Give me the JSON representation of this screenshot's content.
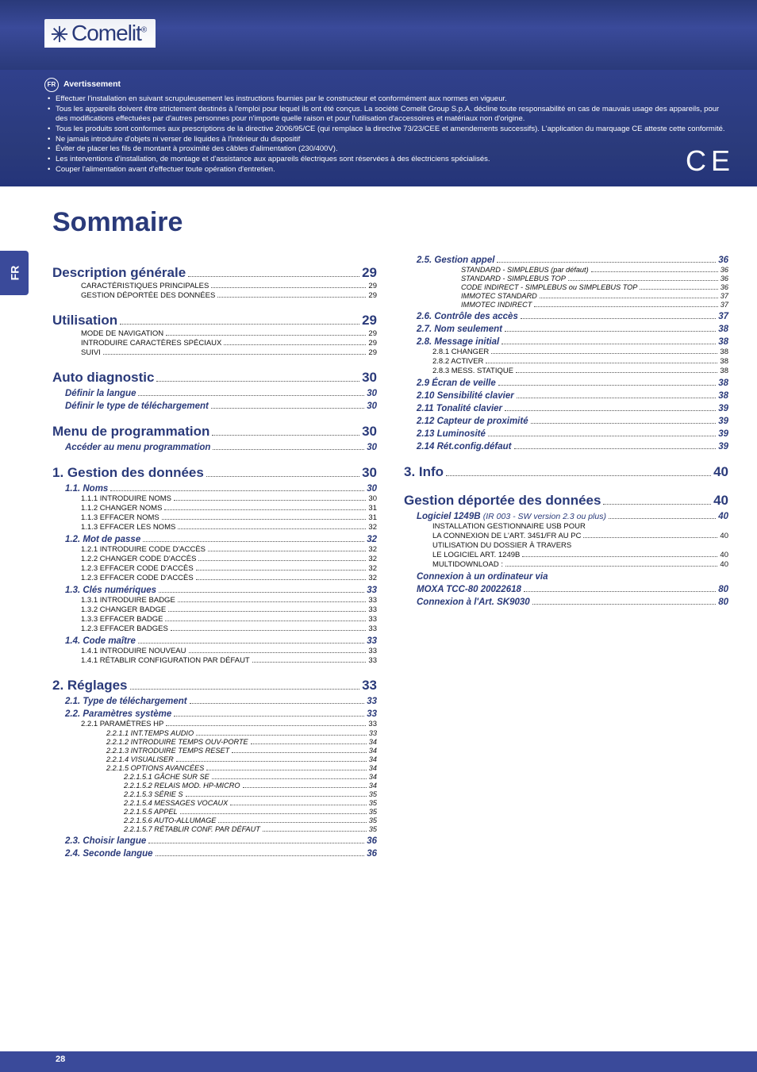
{
  "header": {
    "logo_text": "Comelit"
  },
  "warning": {
    "badge": "FR",
    "title": "Avertissement",
    "items": [
      "Effectuer l'installation en suivant scrupuleusement les instructions fournies par le constructeur et conformément aux normes en vigueur.",
      "Tous les appareils doivent être strictement destinés à l'emploi pour lequel ils ont été conçus. La société Comelit Group S.p.A. décline toute responsabilité en cas de mauvais usage des appareils, pour des modifications effectuées par d'autres personnes pour n'importe quelle raison et pour l'utilisation d'accessoires et matériaux non d'origine.",
      "Tous les produits sont conformes aux prescriptions de la directive 2006/95/CE (qui remplace la directive 73/23/CEE et amendements successifs). L'application du marquage CE atteste cette conformité.",
      "Ne jamais introduire d'objets ni verser de liquides à l'intérieur du dispositif",
      "Éviter de placer les fils de montant à proximité des câbles d'alimentation (230/400V).",
      "Les interventions d'installation, de montage et d'assistance aux appareils électriques sont réservées à des électriciens spécialisés.",
      "Couper l'alimentation avant d'effectuer toute opération d'entretien."
    ],
    "ce": "C E"
  },
  "side_tab": "FR",
  "title": "Sommaire",
  "page_number": "28",
  "left": [
    {
      "l": 1,
      "t": "Description générale",
      "p": "29"
    },
    {
      "l": 3,
      "t": "CARACTÉRISTIQUES PRINCIPALES",
      "p": "29"
    },
    {
      "l": 3,
      "t": "GESTION DÉPORTÉE DES DONNÉES",
      "p": "29"
    },
    {
      "l": 1,
      "t": "Utilisation",
      "p": "29"
    },
    {
      "l": 3,
      "t": "MODE DE NAVIGATION",
      "p": "29"
    },
    {
      "l": 3,
      "t": "INTRODUIRE CARACTÈRES SPÉCIAUX",
      "p": "29"
    },
    {
      "l": 3,
      "t": "SUIVI",
      "p": "29"
    },
    {
      "l": 1,
      "t": "Auto diagnostic",
      "p": "30"
    },
    {
      "l": 2,
      "t": "Définir la langue",
      "p": "30"
    },
    {
      "l": 2,
      "t": "Définir le type de téléchargement",
      "p": "30"
    },
    {
      "l": 1,
      "t": "Menu de programmation",
      "p": "30"
    },
    {
      "l": 2,
      "t": "Accéder au menu programmation",
      "p": "30"
    },
    {
      "l": 1,
      "t": "1. Gestion des données",
      "p": "30"
    },
    {
      "l": 2,
      "t": "1.1. Noms",
      "p": "30"
    },
    {
      "l": 3,
      "t": "1.1.1 INTRODUIRE NOMS",
      "p": "30"
    },
    {
      "l": 3,
      "t": "1.1.2 CHANGER NOMS",
      "p": "31"
    },
    {
      "l": 3,
      "t": "1.1.3 EFFACER NOMS",
      "p": "31"
    },
    {
      "l": 3,
      "t": "1.1.3 EFFACER LES NOMS",
      "p": "32"
    },
    {
      "l": 2,
      "t": "1.2. Mot de passe",
      "p": "32"
    },
    {
      "l": 3,
      "t": "1.2.1 INTRODUIRE CODE D'ACCÈS",
      "p": "32"
    },
    {
      "l": 3,
      "t": "1.2.2 CHANGER CODE D'ACCÈS",
      "p": "32"
    },
    {
      "l": 3,
      "t": "1.2.3 EFFACER CODE D'ACCÈS",
      "p": "32"
    },
    {
      "l": 3,
      "t": "1.2.3 EFFACER CODE D'ACCÈS",
      "p": "32"
    },
    {
      "l": 2,
      "t": "1.3. Clés numériques",
      "p": "33"
    },
    {
      "l": 3,
      "t": "1.3.1 INTRODUIRE BADGE",
      "p": "33"
    },
    {
      "l": 3,
      "t": "1.3.2 CHANGER BADGE",
      "p": "33"
    },
    {
      "l": 3,
      "t": "1.3.3 EFFACER BADGE",
      "p": "33"
    },
    {
      "l": 3,
      "t": "1.2.3 EFFACER BADGES",
      "p": "33"
    },
    {
      "l": 2,
      "t": "1.4. Code maître",
      "p": "33"
    },
    {
      "l": 3,
      "t": "1.4.1 INTRODUIRE NOUVEAU",
      "p": "33"
    },
    {
      "l": 3,
      "t": "1.4.1 RÉTABLIR CONFIGURATION PAR DÉFAUT",
      "p": "33"
    },
    {
      "l": 1,
      "t": "2. Réglages",
      "p": "33"
    },
    {
      "l": 2,
      "t": "2.1. Type de téléchargement",
      "p": "33"
    },
    {
      "l": 2,
      "t": "2.2. Paramètres système",
      "p": "33"
    },
    {
      "l": 3,
      "t": "2.2.1 PARAMÈTRES HP",
      "p": "33"
    },
    {
      "l": 4,
      "t": "2.2.1.1 INT.TEMPS AUDIO",
      "p": "33"
    },
    {
      "l": 4,
      "t": "2.2.1.2 INTRODUIRE TEMPS OUV-PORTE",
      "p": "34"
    },
    {
      "l": 4,
      "t": "2.2.1.3 INTRODUIRE TEMPS RESET",
      "p": "34"
    },
    {
      "l": 4,
      "t": "2.2.1.4 VISUALISER",
      "p": "34"
    },
    {
      "l": 4,
      "t": "2.2.1.5 OPTIONS AVANCÉES",
      "p": "34"
    },
    {
      "l": 5,
      "t": "2.2.1.5.1 GÂCHE SUR SE",
      "p": "34"
    },
    {
      "l": 5,
      "t": "2.2.1.5.2 RELAIS MOD. HP-MICRO",
      "p": "34"
    },
    {
      "l": 5,
      "t": "2.2.1.5.3 SÉRIE S",
      "p": "35"
    },
    {
      "l": 5,
      "t": "2.2.1.5.4 MESSAGES VOCAUX",
      "p": "35"
    },
    {
      "l": 5,
      "t": "2.2.1.5.5 APPEL",
      "p": "35"
    },
    {
      "l": 5,
      "t": "2.2.1.5.6 AUTO-ALLUMAGE",
      "p": "35"
    },
    {
      "l": 5,
      "t": "2.2.1.5.7 RÉTABLIR CONF. PAR DÉFAUT",
      "p": "35"
    },
    {
      "l": 2,
      "t": "2.3. Choisir langue",
      "p": "36"
    },
    {
      "l": 2,
      "t": "2.4. Seconde langue",
      "p": "36"
    }
  ],
  "right": [
    {
      "l": 2,
      "t": "2.5. Gestion appel",
      "p": "36"
    },
    {
      "l": "3i",
      "t": "STANDARD - SIMPLEBUS (par défaut)",
      "p": "36"
    },
    {
      "l": "3i",
      "t": "STANDARD - SIMPLEBUS TOP",
      "p": "36"
    },
    {
      "l": "3i",
      "t": "CODE INDIRECT - SIMPLEBUS ou SIMPLEBUS TOP",
      "p": "36"
    },
    {
      "l": "3i",
      "t": "IMMOTEC STANDARD",
      "p": "37"
    },
    {
      "l": "3i",
      "t": "IMMOTEC INDIRECT",
      "p": "37"
    },
    {
      "l": 2,
      "t": "2.6. Contrôle des accès",
      "p": "37"
    },
    {
      "l": 2,
      "t": "2.7. Nom seulement",
      "p": "38"
    },
    {
      "l": 2,
      "t": "2.8. Message initial",
      "p": "38"
    },
    {
      "l": 3,
      "t": "2.8.1 CHANGER",
      "p": "38"
    },
    {
      "l": 3,
      "t": "2.8.2 ACTIVER",
      "p": "38"
    },
    {
      "l": 3,
      "t": "2.8.3 MESS. STATIQUE",
      "p": "38"
    },
    {
      "l": 2,
      "t": "2.9 Écran de veille",
      "p": "38"
    },
    {
      "l": 2,
      "t": "2.10 Sensibilité clavier",
      "p": "38"
    },
    {
      "l": 2,
      "t": "2.11 Tonalité clavier",
      "p": "39"
    },
    {
      "l": 2,
      "t": "2.12 Capteur de proximité",
      "p": "39"
    },
    {
      "l": 2,
      "t": "2.13 Luminosité",
      "p": "39"
    },
    {
      "l": 2,
      "t": "2.14 Rét.config.défaut",
      "p": "39"
    },
    {
      "l": 1,
      "t": "3. Info",
      "p": "40"
    },
    {
      "l": 1,
      "t": "Gestion déportée des données",
      "p": "40"
    },
    {
      "l": 2,
      "t": "Logiciel 1249B ",
      "sub": "(IR 003 - SW version 2.3 ou plus)",
      "p": "40"
    },
    {
      "l": 3,
      "t": "INSTALLATION GESTIONNAIRE USB POUR",
      "p": ""
    },
    {
      "l": 3,
      "t": "LA CONNEXION DE L'ART. 3451/FR AU PC",
      "p": "40"
    },
    {
      "l": 3,
      "t": "UTILISATION DU DOSSIER À TRAVERS",
      "p": ""
    },
    {
      "l": 3,
      "t": "LE LOGICIEL ART. 1249B",
      "p": "40"
    },
    {
      "l": 3,
      "t": "MULTIDOWNLOAD :",
      "p": "40"
    },
    {
      "l": 2,
      "t": "Connexion à un ordinateur via",
      "p": ""
    },
    {
      "l": 2,
      "t": "MOXA TCC-80 20022618",
      "p": "80"
    },
    {
      "l": 2,
      "t": "Connexion à l'Art. SK9030",
      "p": "80"
    }
  ]
}
